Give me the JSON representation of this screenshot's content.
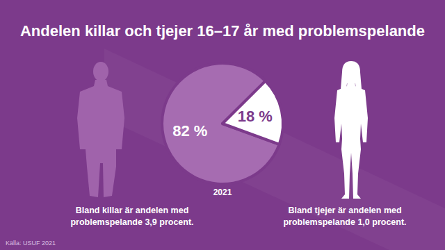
{
  "chart_data": {
    "type": "pie",
    "title": "Andelen killar och tjejer 16–17 år med problemspelande",
    "values": [
      82,
      18
    ],
    "value_labels": [
      "82 %",
      "18 %"
    ],
    "colors": [
      "#a66cb1",
      "#ffffff"
    ],
    "data_labels": true,
    "annotations": [
      "2021",
      "Bland killar är andelen med problemspelande 3,9 procent.",
      "Bland tjejer är andelen med problemspelande 1,0 procent.",
      "Källa: USUF 2021"
    ]
  }
}
